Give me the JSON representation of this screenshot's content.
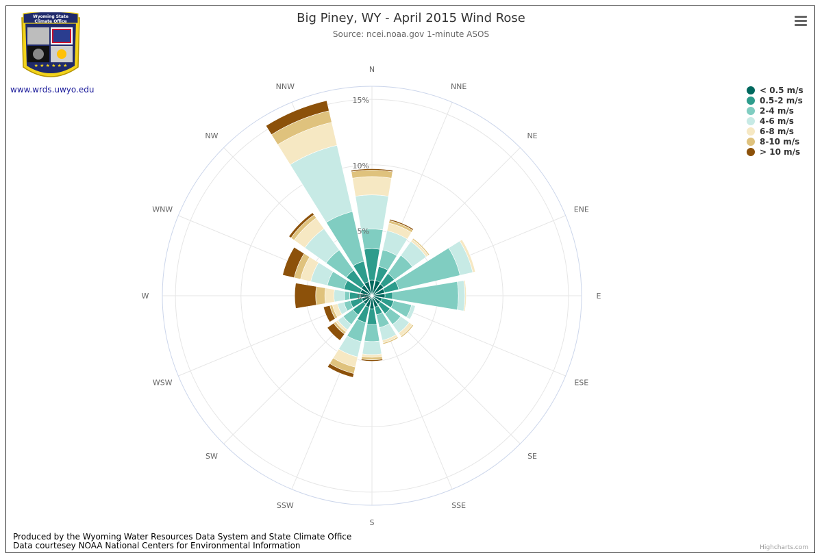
{
  "header": {
    "logo_alt_name": "Wyoming State Climate Office",
    "logo_text_line1": "Wyoming State",
    "logo_text_line2": "Climate Office",
    "logo_url": "www.wrds.uwyo.edu"
  },
  "footer": {
    "line1": "Produced by the Wyoming Water Resources Data System and State Climate Office",
    "line2": "Data courtesey NOAA National Centers for Environmental Information"
  },
  "credits": "Highcharts.com",
  "colors": {
    "axis_circle": "#ccd6eb",
    "grid": "#e6e6e6",
    "series": [
      "#00685e",
      "#2d9c8c",
      "#80cdc1",
      "#c7eae5",
      "#f6e8c3",
      "#dfc27d",
      "#8c510a"
    ]
  },
  "chart_data": {
    "type": "windrose",
    "title": "Big Piney, WY - April 2015 Wind Rose",
    "subtitle": "Source: ncei.noaa.gov 1-minute ASOS",
    "directions": [
      "N",
      "NNE",
      "NE",
      "ENE",
      "E",
      "ESE",
      "SE",
      "SSE",
      "S",
      "SSW",
      "SW",
      "WSW",
      "W",
      "WNW",
      "NW",
      "NNW"
    ],
    "radial_max": 16,
    "radial_ticks": [
      0,
      5,
      10,
      15
    ],
    "radial_tick_labels": [
      "0%",
      "5%",
      "10%",
      "15%"
    ],
    "stacking": "cumulative percent",
    "legend_position": "top-right",
    "series": [
      {
        "name": "< 0.5 m/s",
        "values": [
          1.2,
          1.2,
          1.1,
          1.0,
          1.0,
          0.8,
          0.8,
          0.9,
          1.0,
          0.9,
          0.8,
          0.8,
          0.9,
          0.9,
          1.0,
          1.1
        ]
      },
      {
        "name": "0.5-2 m/s",
        "values": [
          2.4,
          1.1,
          1.0,
          1.1,
          0.6,
          0.9,
          0.9,
          0.6,
          1.2,
          1.2,
          1.0,
          0.9,
          0.8,
          1.3,
          1.4,
          1.6
        ]
      },
      {
        "name": "2-4 m/s",
        "values": [
          1.5,
          1.3,
          1.7,
          4.8,
          5.0,
          1.4,
          1.0,
          1.0,
          1.3,
          1.5,
          0.9,
          0.5,
          0.4,
          1.3,
          1.9,
          3.9
        ]
      },
      {
        "name": "4-6 m/s",
        "values": [
          2.6,
          1.5,
          1.3,
          1.0,
          0.5,
          0.3,
          0.8,
          1.0,
          1.0,
          1.2,
          0.5,
          0.5,
          0.8,
          1.3,
          2.0,
          5.2
        ]
      },
      {
        "name": "6-8 m/s",
        "values": [
          1.4,
          0.6,
          0.2,
          0.2,
          0.1,
          0.0,
          0.3,
          0.2,
          0.2,
          0.8,
          0.2,
          0.4,
          0.7,
          0.8,
          1.0,
          1.8
        ]
      },
      {
        "name": "8-10 m/s",
        "values": [
          0.5,
          0.2,
          0.1,
          0.0,
          0.0,
          0.0,
          0.1,
          0.1,
          0.2,
          0.5,
          0.2,
          0.2,
          0.7,
          0.5,
          0.3,
          0.9
        ]
      },
      {
        "name": "> 10 m/s",
        "values": [
          0.1,
          0.1,
          0.0,
          0.0,
          0.0,
          0.0,
          0.0,
          0.0,
          0.1,
          0.3,
          0.6,
          0.5,
          1.6,
          0.9,
          0.2,
          0.8
        ]
      }
    ]
  }
}
